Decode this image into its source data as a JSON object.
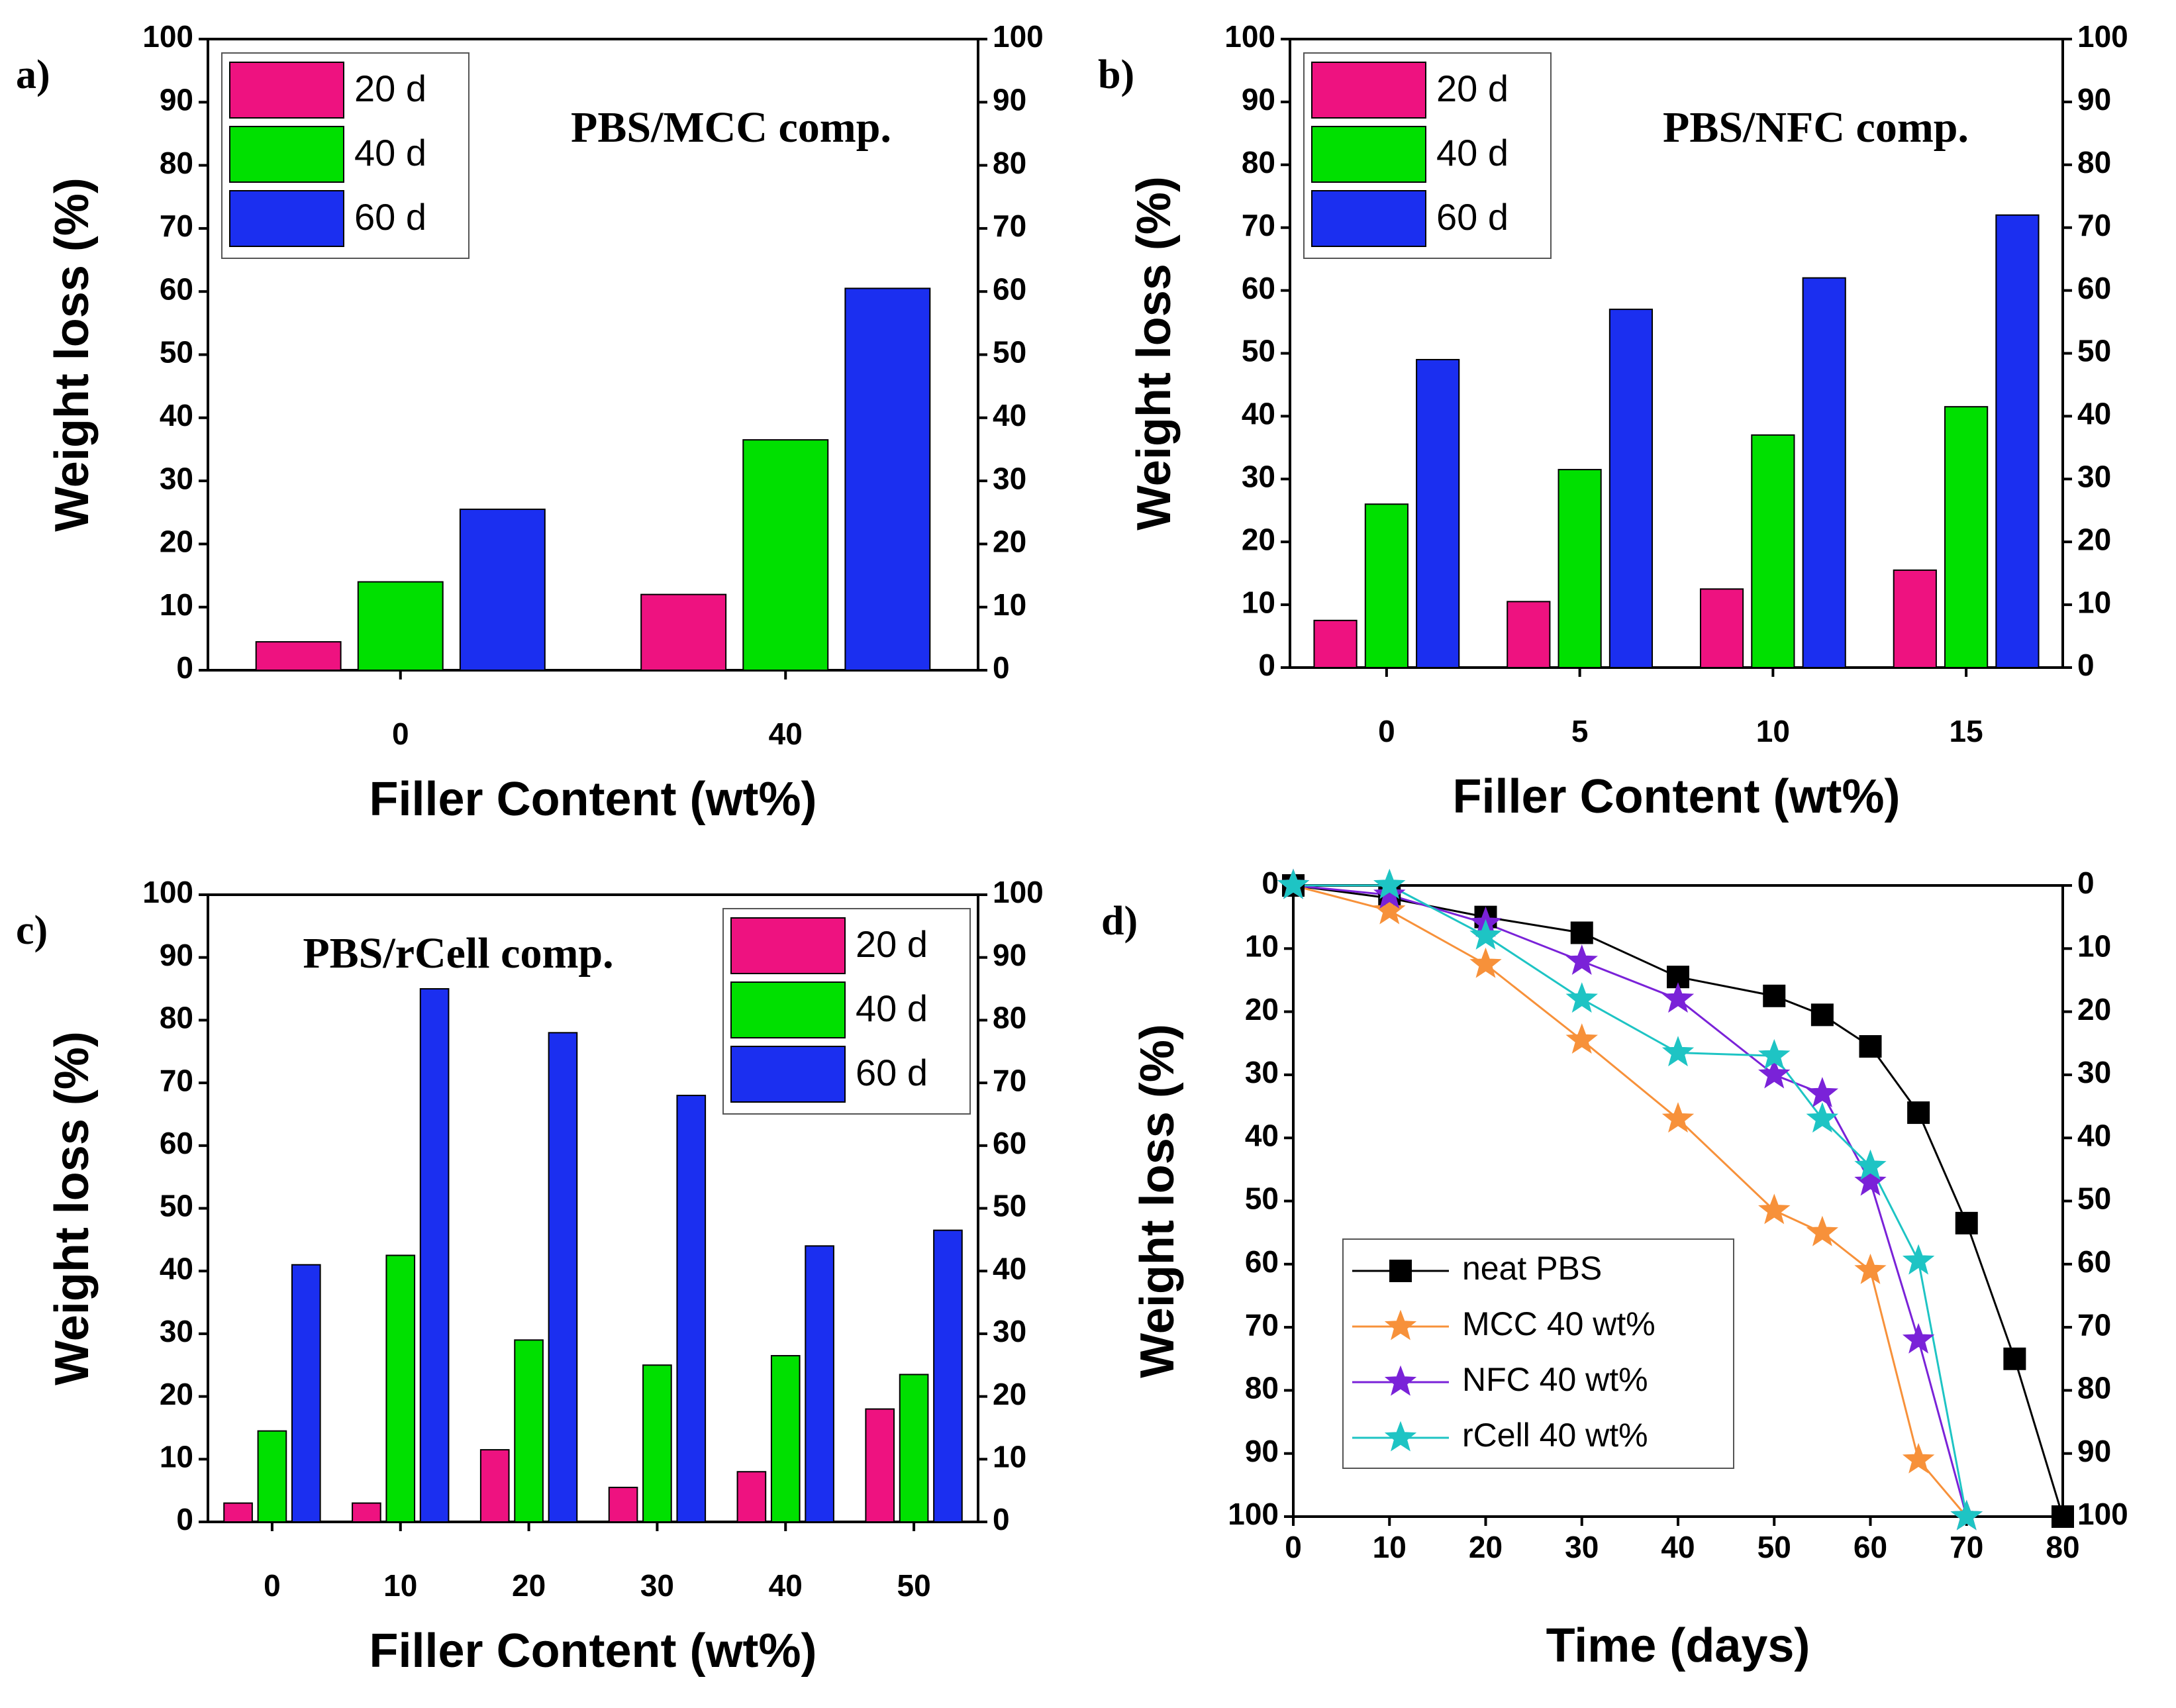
{
  "chart_data": [
    {
      "type": "bar",
      "panel": "a)",
      "title": "PBS/MCC comp.",
      "x_label": "Filler Content (wt%)",
      "y_label": "Weight loss (%)",
      "categories": [
        "0",
        "40"
      ],
      "series": [
        {
          "name": "20 d",
          "color": "#ee1280",
          "values": [
            4.5,
            12
          ]
        },
        {
          "name": "40 d",
          "color": "#00e000",
          "values": [
            14,
            36.5
          ]
        },
        {
          "name": "60 d",
          "color": "#1b2ff0",
          "values": [
            25.5,
            60.5
          ]
        }
      ],
      "ylim": [
        0,
        100
      ],
      "yticks": [
        0,
        10,
        20,
        30,
        40,
        50,
        60,
        70,
        80,
        90,
        100
      ],
      "y2lim": [
        0,
        100
      ],
      "y2ticks": [
        0,
        10,
        20,
        30,
        40,
        50,
        60,
        70,
        80,
        90,
        100
      ],
      "legend": "upper left"
    },
    {
      "type": "bar",
      "panel": "b)",
      "title": "PBS/NFC comp.",
      "x_label": "Filler Content (wt%)",
      "y_label": "Weight loss (%)",
      "categories": [
        "0",
        "5",
        "10",
        "15"
      ],
      "series": [
        {
          "name": "20 d",
          "color": "#ee1280",
          "values": [
            7.5,
            10.5,
            12.5,
            15.5
          ]
        },
        {
          "name": "40 d",
          "color": "#00e000",
          "values": [
            26,
            31.5,
            37,
            41.5
          ]
        },
        {
          "name": "60 d",
          "color": "#1b2ff0",
          "values": [
            49,
            57,
            62,
            72
          ]
        }
      ],
      "ylim": [
        0,
        100
      ],
      "yticks": [
        0,
        10,
        20,
        30,
        40,
        50,
        60,
        70,
        80,
        90,
        100
      ],
      "y2lim": [
        0,
        100
      ],
      "y2ticks": [
        0,
        10,
        20,
        30,
        40,
        50,
        60,
        70,
        80,
        90,
        100
      ],
      "legend": "upper left"
    },
    {
      "type": "bar",
      "panel": "c)",
      "title": "PBS/rCell comp.",
      "x_label": "Filler Content (wt%)",
      "y_label": "Weight loss (%)",
      "categories": [
        "0",
        "10",
        "20",
        "30",
        "40",
        "50"
      ],
      "series": [
        {
          "name": "20 d",
          "color": "#ee1280",
          "values": [
            3,
            3,
            11.5,
            5.5,
            8,
            18
          ]
        },
        {
          "name": "40 d",
          "color": "#00e000",
          "values": [
            14.5,
            42.5,
            29,
            25,
            26.5,
            23.5
          ]
        },
        {
          "name": "60 d",
          "color": "#1b2ff0",
          "values": [
            41,
            85,
            78,
            68,
            44,
            46.5
          ]
        }
      ],
      "ylim": [
        0,
        100
      ],
      "yticks": [
        0,
        10,
        20,
        30,
        40,
        50,
        60,
        70,
        80,
        90,
        100
      ],
      "y2lim": [
        0,
        100
      ],
      "y2ticks": [
        0,
        10,
        20,
        30,
        40,
        50,
        60,
        70,
        80,
        90,
        100
      ],
      "legend": "upper right"
    },
    {
      "type": "line",
      "panel": "d)",
      "x_label": "Time (days)",
      "y_label": "Weight loss (%)",
      "series": [
        {
          "name": "neat PBS",
          "color": "#000000",
          "marker": "square",
          "x": [
            0,
            10,
            20,
            30,
            40,
            50,
            55,
            60,
            65,
            70,
            75,
            80
          ],
          "values": [
            0,
            2,
            5,
            7.5,
            14.5,
            17.5,
            20.5,
            25.5,
            36,
            53.5,
            75,
            100
          ]
        },
        {
          "name": "MCC 40 wt%",
          "color": "#f7913a",
          "marker": "star",
          "x": [
            0,
            10,
            20,
            30,
            40,
            50,
            55,
            60,
            65,
            70
          ],
          "values": [
            0,
            4,
            12.5,
            24.5,
            37,
            51.5,
            55,
            61,
            91,
            100
          ]
        },
        {
          "name": "NFC 40 wt%",
          "color": "#7a22d8",
          "marker": "star",
          "x": [
            0,
            10,
            20,
            30,
            40,
            50,
            55,
            60,
            65,
            70
          ],
          "values": [
            0,
            1.5,
            6,
            12,
            18,
            30,
            33,
            47,
            72,
            100
          ]
        },
        {
          "name": "rCell 40 wt%",
          "color": "#1ec4c4",
          "marker": "star",
          "x": [
            0,
            10,
            20,
            30,
            40,
            50,
            55,
            60,
            65,
            70
          ],
          "values": [
            0,
            0,
            8,
            18,
            26.5,
            27,
            37,
            44.5,
            59.5,
            100
          ]
        }
      ],
      "xlim": [
        0,
        80
      ],
      "xticks": [
        0,
        10,
        20,
        30,
        40,
        50,
        60,
        70,
        80
      ],
      "ylim": [
        100,
        0
      ],
      "yticks": [
        0,
        10,
        20,
        30,
        40,
        50,
        60,
        70,
        80,
        90,
        100
      ],
      "y2lim": [
        100,
        0
      ],
      "y2ticks": [
        0,
        10,
        20,
        30,
        40,
        50,
        60,
        70,
        80,
        90,
        100
      ],
      "legend": "lower left"
    }
  ]
}
